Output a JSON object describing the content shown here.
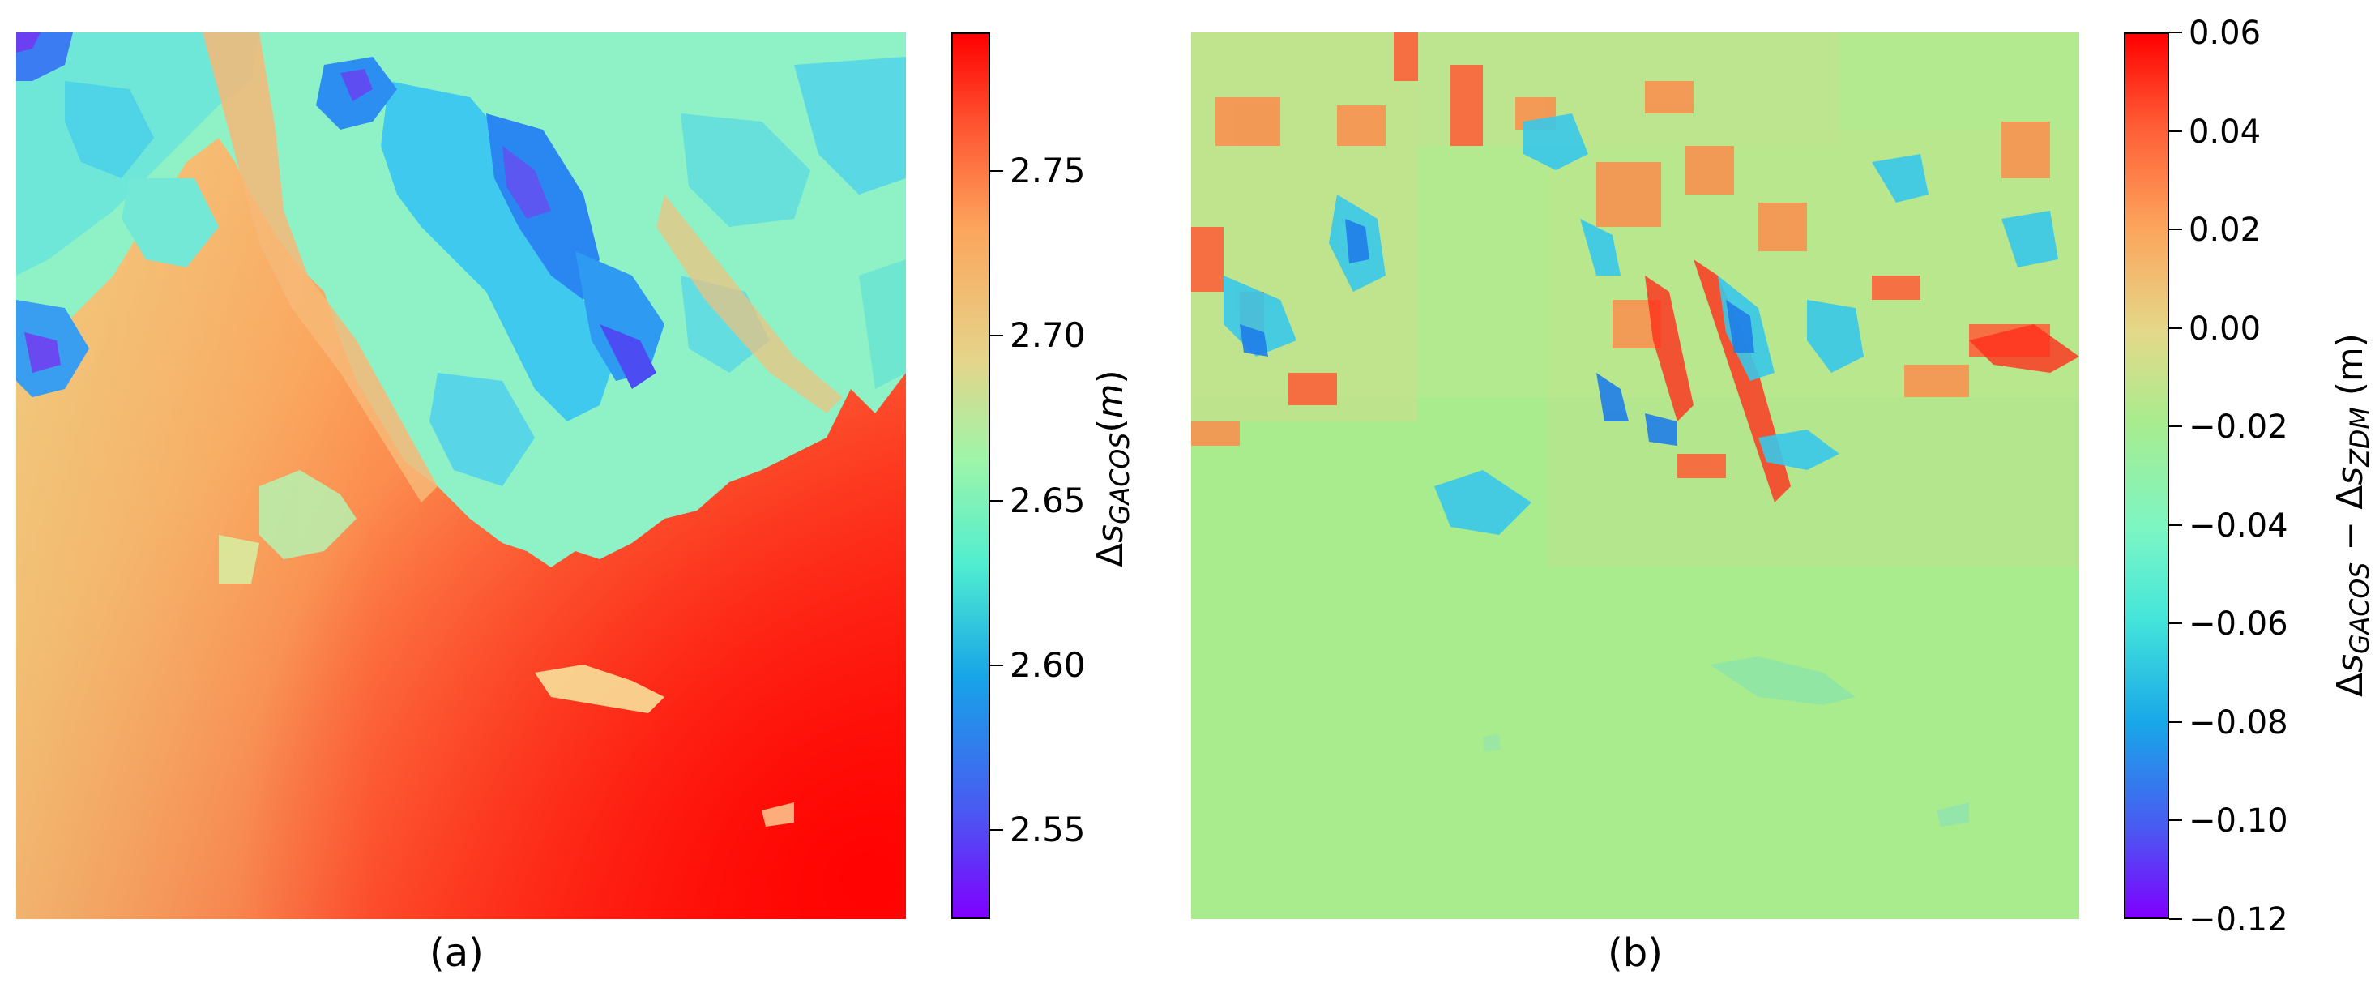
{
  "figures": [
    {
      "caption": "(a)",
      "colorbar": {
        "label_html": "Δ<i>s</i><sub>GACOS</sub>(<i>m</i>)",
        "ticks": [
          "2.55",
          "2.60",
          "2.65",
          "2.70",
          "2.75"
        ],
        "tick_values": [
          2.55,
          2.6,
          2.65,
          2.7,
          2.75
        ],
        "range": [
          2.523,
          2.792
        ]
      }
    },
    {
      "caption": "(b)",
      "colorbar": {
        "label_html": "Δ<i>s</i><sub>GACOS</sub> − Δ<i>s</i><sub>ZDM</sub> (m)",
        "ticks": [
          "0.06",
          "0.04",
          "0.02",
          "0.00",
          "−0.02",
          "−0.04",
          "−0.06",
          "−0.08",
          "−0.10",
          "−0.12"
        ],
        "tick_values": [
          0.06,
          0.04,
          0.02,
          0.0,
          -0.02,
          -0.04,
          -0.06,
          -0.08,
          -0.1,
          -0.12
        ],
        "range": [
          -0.12,
          0.06
        ]
      }
    }
  ],
  "colormap": "rainbow",
  "colors": {
    "low": "#7f00ff",
    "mid_low": "#1e90ff",
    "mid": "#7ffad0",
    "mid_high": "#fcb96a",
    "high": "#ff0000",
    "b_background": "#a8ec8e"
  },
  "chart_data": [
    {
      "type": "heatmap",
      "title": "",
      "caption": "(a)",
      "colorbar_label": "ΔsGACOS(m)",
      "colorbar_range": [
        2.523,
        2.792
      ],
      "colorbar_ticks": [
        2.55,
        2.6,
        2.65,
        2.7,
        2.75
      ],
      "colormap": "rainbow"
    },
    {
      "type": "heatmap",
      "title": "",
      "caption": "(b)",
      "colorbar_label": "ΔsGACOS − ΔsZDM (m)",
      "colorbar_range": [
        -0.12,
        0.06
      ],
      "colorbar_ticks": [
        0.06,
        0.04,
        0.02,
        0.0,
        -0.02,
        -0.04,
        -0.06,
        -0.08,
        -0.1,
        -0.12
      ],
      "colormap": "rainbow"
    }
  ]
}
